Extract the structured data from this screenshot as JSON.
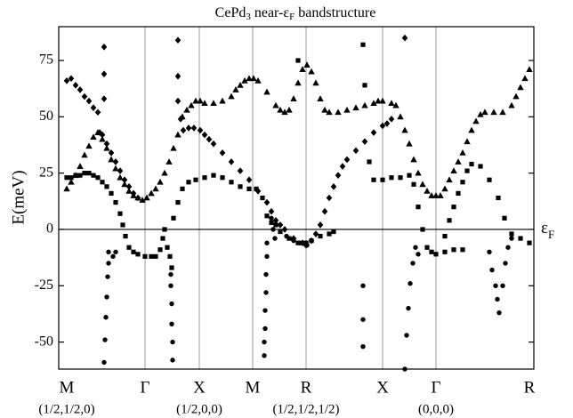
{
  "chart_data": {
    "type": "scatter",
    "title": [
      "CePd",
      "3",
      " near-ε",
      "F",
      " bandstructure"
    ],
    "ylabel": "E(meV)",
    "zero_line_label": [
      "ε",
      "F"
    ],
    "xlim": [
      -9,
      525
    ],
    "xticks": [
      {
        "value": 0,
        "label": "M"
      },
      {
        "value": 88,
        "label": "Γ"
      },
      {
        "value": 149,
        "label": "X"
      },
      {
        "value": 209,
        "label": "M"
      },
      {
        "value": 269,
        "label": "R"
      },
      {
        "value": 355,
        "label": "X"
      },
      {
        "value": 415,
        "label": "Γ"
      },
      {
        "value": 520,
        "label": "R"
      }
    ],
    "annotations": [
      {
        "x": 0,
        "text": "(1/2,1/2,0)"
      },
      {
        "x": 149,
        "text": "(1/2,0,0)"
      },
      {
        "x": 269,
        "text": "(1/2,1/2,1/2)"
      },
      {
        "x": 415,
        "text": "(0,0,0)"
      }
    ],
    "ylim": [
      -62,
      90
    ],
    "yticks": [
      -50,
      -25,
      0,
      25,
      50,
      75
    ],
    "grid": true,
    "series": [
      {
        "marker": "triangle",
        "color": "#000000",
        "x": [
          0,
          5,
          10,
          15,
          20,
          25,
          30,
          35,
          40,
          45,
          50,
          55,
          60,
          65,
          70,
          75,
          80,
          85,
          90,
          95,
          100,
          105,
          110,
          115,
          120,
          125,
          130,
          135,
          140,
          145,
          150,
          155,
          165,
          175,
          185,
          190,
          195,
          200,
          205,
          210,
          215,
          225,
          235,
          240,
          245,
          250,
          255,
          260,
          265,
          270,
          275,
          280,
          285,
          290,
          295,
          305,
          315,
          325,
          335,
          345,
          350,
          355,
          365,
          370,
          375,
          380,
          385,
          390,
          395,
          400,
          405,
          410,
          415,
          420,
          425,
          430,
          435,
          440,
          445,
          450,
          455,
          460,
          465,
          470,
          480,
          490,
          500,
          505,
          510,
          515,
          520
        ],
        "values": [
          18,
          21,
          24,
          28,
          33,
          37,
          41,
          43,
          40,
          36,
          31,
          27,
          23,
          20,
          17,
          15,
          14,
          13,
          14,
          16,
          18,
          21,
          25,
          30,
          36,
          42,
          50,
          53,
          55,
          57,
          57,
          56,
          56,
          57,
          59,
          62,
          64,
          66,
          67,
          67,
          66,
          61,
          55,
          53,
          52,
          53,
          58,
          65,
          71,
          73,
          70,
          65,
          58,
          53,
          52,
          52,
          53,
          54,
          55,
          56,
          57,
          57,
          56,
          55,
          50,
          44,
          38,
          31,
          25,
          20,
          17,
          15,
          15,
          15,
          18,
          22,
          26,
          30,
          34,
          39,
          44,
          48,
          51,
          52,
          52,
          52,
          55,
          59,
          63,
          67,
          71
        ]
      },
      {
        "marker": "diamond",
        "color": "#000000",
        "x": [
          0,
          5,
          10,
          15,
          20,
          25,
          30,
          35,
          42,
          42,
          42,
          37,
          40,
          45,
          50,
          55,
          60,
          65,
          70,
          75,
          80,
          125,
          125,
          125,
          128,
          131,
          137,
          143,
          150,
          155,
          160,
          165,
          175,
          185,
          195,
          205,
          215,
          225,
          230,
          235,
          240,
          245,
          255,
          265,
          269,
          275,
          280,
          285,
          290,
          295,
          300,
          305,
          310,
          315,
          325,
          335,
          345,
          355,
          360,
          365,
          380
        ],
        "values": [
          66,
          67,
          64,
          62,
          59,
          57,
          54,
          52,
          81,
          69,
          58,
          43,
          42,
          38,
          34,
          30,
          26,
          22,
          19,
          16,
          14,
          84,
          68,
          57,
          49,
          44,
          45,
          45,
          44,
          42,
          40,
          38,
          34,
          30,
          26,
          22,
          17,
          12,
          8,
          4,
          2,
          0,
          -4,
          -6,
          -7,
          -5,
          -2,
          2,
          8,
          14,
          19,
          24,
          28,
          31,
          35,
          39,
          43,
          46,
          47,
          49,
          85
        ]
      },
      {
        "marker": "square",
        "color": "#000000",
        "x": [
          0,
          5,
          10,
          15,
          20,
          25,
          30,
          35,
          40,
          45,
          50,
          55,
          60,
          63,
          66,
          70,
          75,
          80,
          88,
          95,
          100,
          105,
          108,
          110,
          113,
          116,
          118,
          120,
          125,
          130,
          137,
          145,
          155,
          165,
          175,
          185,
          195,
          205,
          213,
          220,
          225,
          230,
          235,
          240,
          250,
          260,
          269,
          275,
          285,
          295,
          300,
          260,
          333,
          335,
          340,
          345,
          355,
          365,
          375,
          385,
          390,
          395,
          400,
          405,
          410,
          415,
          425,
          435,
          445,
          425,
          430,
          435,
          440,
          445,
          450,
          455,
          465,
          475,
          485,
          492,
          500,
          510,
          520
        ],
        "values": [
          23,
          23,
          24,
          24,
          25,
          25,
          24,
          23,
          21,
          19,
          16,
          12,
          7,
          2,
          -3,
          -8,
          -10,
          -11,
          -12,
          -12,
          -12,
          -9,
          -4,
          0,
          -8,
          -12,
          -17,
          5,
          12,
          18,
          21,
          22,
          23,
          24,
          23,
          21,
          19,
          18,
          18,
          14,
          6,
          3,
          2,
          -1,
          -4,
          -6,
          -6,
          -5,
          -3,
          -2,
          -1,
          75,
          82,
          64,
          30,
          22,
          22,
          23,
          23,
          24,
          20,
          10,
          0,
          -8,
          -10,
          -11,
          -10,
          -9,
          -9,
          -3,
          4,
          10,
          16,
          21,
          26,
          29,
          28,
          22,
          14,
          5,
          -2,
          -4,
          -6
        ]
      },
      {
        "marker": "circle",
        "color": "#000000",
        "x": [
          47,
          47,
          46,
          45,
          44,
          43,
          42,
          55,
          52,
          117,
          117,
          118,
          118,
          119,
          119,
          225,
          225,
          224,
          224,
          223,
          223,
          222,
          222,
          230,
          232,
          234,
          247,
          255,
          262,
          270,
          333,
          333,
          333,
          380,
          382,
          384,
          386,
          389,
          392,
          395,
          475,
          478,
          482,
          484,
          486,
          490,
          493,
          496,
          500
        ],
        "values": [
          -10,
          -15,
          -21,
          -30,
          -39,
          -49,
          -59,
          -10,
          -12,
          -20,
          -25,
          -33,
          -42,
          -50,
          -58,
          -6,
          -12,
          -20,
          -28,
          -36,
          -44,
          -50,
          -56,
          5,
          0,
          -4,
          -3,
          -5,
          -6,
          -7,
          -25,
          -40,
          -52,
          -62,
          -47,
          -35,
          -24,
          -15,
          -8,
          -11,
          -10,
          -18,
          -25,
          -31,
          -37,
          -25,
          -15,
          -8,
          -4
        ]
      }
    ]
  }
}
